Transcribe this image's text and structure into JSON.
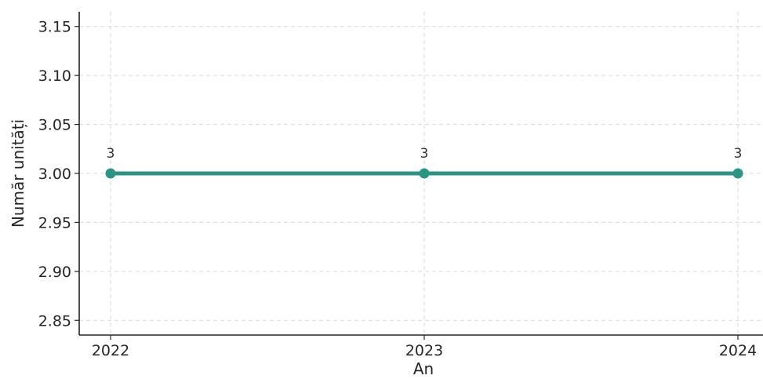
{
  "chart_data": {
    "type": "line",
    "title": "",
    "xlabel": "An",
    "ylabel": "Număr unități",
    "x": [
      2022,
      2023,
      2024
    ],
    "series": [
      {
        "values": [
          3,
          3,
          3
        ],
        "color": "#2a9485"
      }
    ],
    "data_labels": [
      "3",
      "3",
      "3"
    ],
    "x_ticks": [
      "2022",
      "2023",
      "2024"
    ],
    "y_ticks": [
      "2.85",
      "2.90",
      "2.95",
      "3.00",
      "3.05",
      "3.10",
      "3.15"
    ],
    "xlim": [
      2021.9,
      2024.08
    ],
    "ylim": [
      2.835,
      3.165
    ],
    "grid": true,
    "legend": "none"
  }
}
